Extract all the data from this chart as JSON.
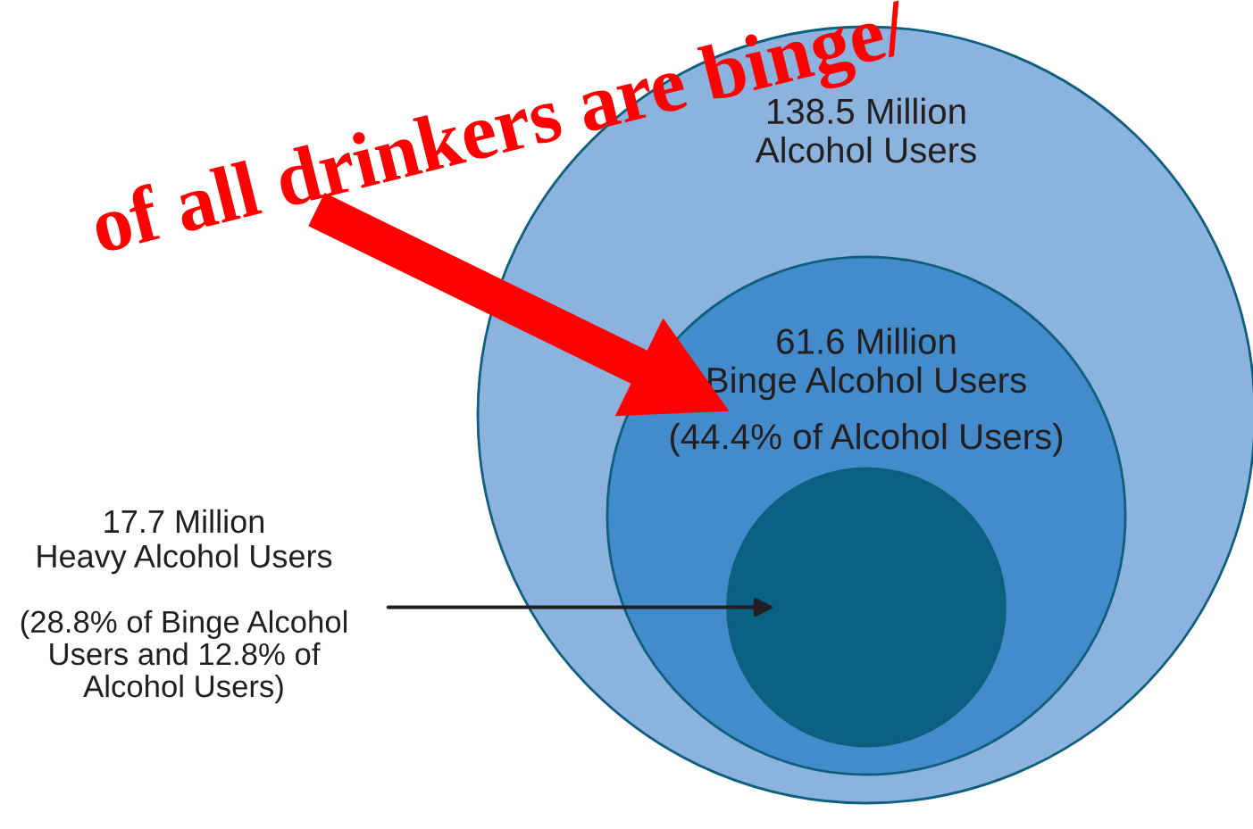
{
  "chart_data": {
    "type": "other",
    "categories": [
      "Alcohol Users",
      "Binge Alcohol Users",
      "Heavy Alcohol Users"
    ],
    "values": [
      138.5,
      61.6,
      17.7
    ],
    "value_labels": [
      "138.5 Million",
      "61.6 Million",
      "17.7 Million"
    ],
    "colors": [
      "#8cb2de",
      "#438bca",
      "#0b6183"
    ],
    "annotations": [
      "(44.4% of Alcohol Users)",
      "(28.8% of Binge Alcohol\nUsers and 12.8% of\nAlcohol Users)",
      "of all drinkers are binge/"
    ]
  }
}
